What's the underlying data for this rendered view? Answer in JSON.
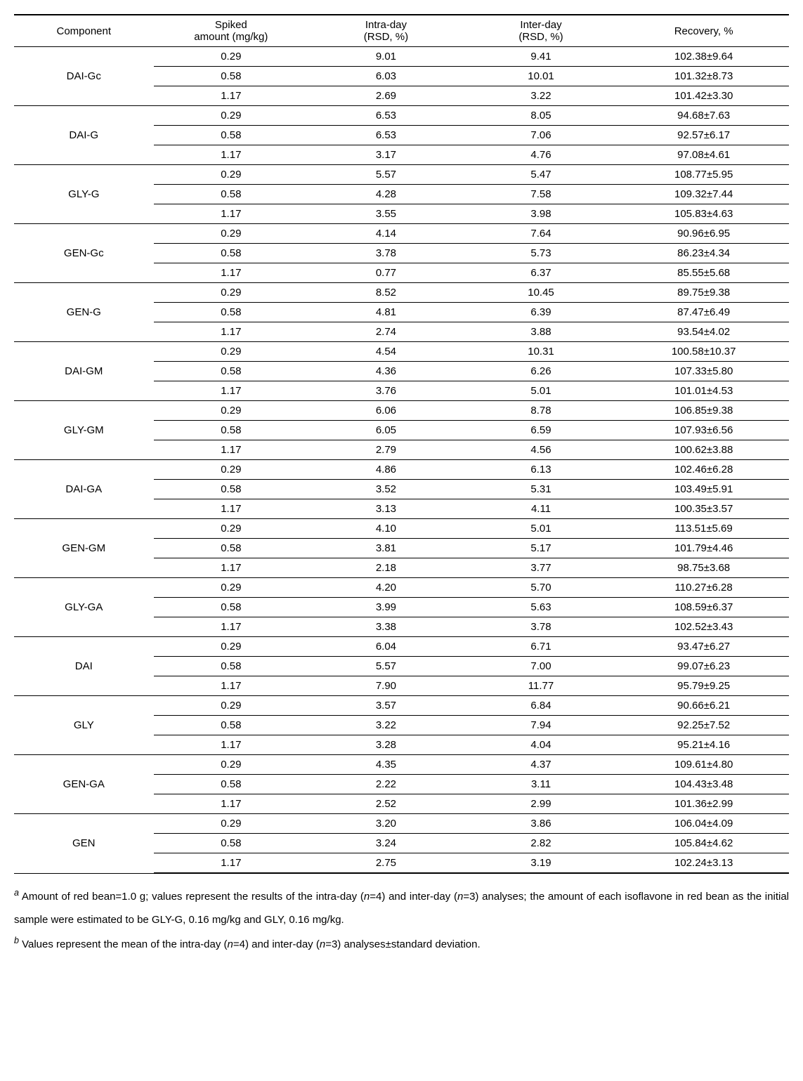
{
  "type": "table",
  "background_color": "#ffffff",
  "text_color": "#000000",
  "border_color": "#000000",
  "fontsize": 15,
  "footnote_fontsize": 15,
  "columns": [
    {
      "key": "component",
      "label": "Component"
    },
    {
      "key": "spiked",
      "label_line1": "Spiked",
      "label_line2": "amount (mg/kg)"
    },
    {
      "key": "intra",
      "label_line1": "Intra-day",
      "label_line2": "(RSD, %)"
    },
    {
      "key": "inter",
      "label_line1": "Inter-day",
      "label_line2": "(RSD, %)"
    },
    {
      "key": "recovery",
      "label": "Recovery, %"
    }
  ],
  "groups": [
    {
      "component": "DAI-Gc",
      "rows": [
        {
          "spiked": "0.29",
          "intra": "9.01",
          "inter": "9.41",
          "recovery": "102.38±9.64"
        },
        {
          "spiked": "0.58",
          "intra": "6.03",
          "inter": "10.01",
          "recovery": "101.32±8.73"
        },
        {
          "spiked": "1.17",
          "intra": "2.69",
          "inter": "3.22",
          "recovery": "101.42±3.30"
        }
      ]
    },
    {
      "component": "DAI-G",
      "rows": [
        {
          "spiked": "0.29",
          "intra": "6.53",
          "inter": "8.05",
          "recovery": "94.68±7.63"
        },
        {
          "spiked": "0.58",
          "intra": "6.53",
          "inter": "7.06",
          "recovery": "92.57±6.17"
        },
        {
          "spiked": "1.17",
          "intra": "3.17",
          "inter": "4.76",
          "recovery": "97.08±4.61"
        }
      ]
    },
    {
      "component": "GLY-G",
      "rows": [
        {
          "spiked": "0.29",
          "intra": "5.57",
          "inter": "5.47",
          "recovery": "108.77±5.95"
        },
        {
          "spiked": "0.58",
          "intra": "4.28",
          "inter": "7.58",
          "recovery": "109.32±7.44"
        },
        {
          "spiked": "1.17",
          "intra": "3.55",
          "inter": "3.98",
          "recovery": "105.83±4.63"
        }
      ]
    },
    {
      "component": "GEN-Gc",
      "rows": [
        {
          "spiked": "0.29",
          "intra": "4.14",
          "inter": "7.64",
          "recovery": "90.96±6.95"
        },
        {
          "spiked": "0.58",
          "intra": "3.78",
          "inter": "5.73",
          "recovery": "86.23±4.34"
        },
        {
          "spiked": "1.17",
          "intra": "0.77",
          "inter": "6.37",
          "recovery": "85.55±5.68"
        }
      ]
    },
    {
      "component": "GEN-G",
      "rows": [
        {
          "spiked": "0.29",
          "intra": "8.52",
          "inter": "10.45",
          "recovery": "89.75±9.38"
        },
        {
          "spiked": "0.58",
          "intra": "4.81",
          "inter": "6.39",
          "recovery": "87.47±6.49"
        },
        {
          "spiked": "1.17",
          "intra": "2.74",
          "inter": "3.88",
          "recovery": "93.54±4.02"
        }
      ]
    },
    {
      "component": "DAI-GM",
      "rows": [
        {
          "spiked": "0.29",
          "intra": "4.54",
          "inter": "10.31",
          "recovery": "100.58±10.37"
        },
        {
          "spiked": "0.58",
          "intra": "4.36",
          "inter": "6.26",
          "recovery": "107.33±5.80"
        },
        {
          "spiked": "1.17",
          "intra": "3.76",
          "inter": "5.01",
          "recovery": "101.01±4.53"
        }
      ]
    },
    {
      "component": "GLY-GM",
      "rows": [
        {
          "spiked": "0.29",
          "intra": "6.06",
          "inter": "8.78",
          "recovery": "106.85±9.38"
        },
        {
          "spiked": "0.58",
          "intra": "6.05",
          "inter": "6.59",
          "recovery": "107.93±6.56"
        },
        {
          "spiked": "1.17",
          "intra": "2.79",
          "inter": "4.56",
          "recovery": "100.62±3.88"
        }
      ]
    },
    {
      "component": "DAI-GA",
      "rows": [
        {
          "spiked": "0.29",
          "intra": "4.86",
          "inter": "6.13",
          "recovery": "102.46±6.28"
        },
        {
          "spiked": "0.58",
          "intra": "3.52",
          "inter": "5.31",
          "recovery": "103.49±5.91"
        },
        {
          "spiked": "1.17",
          "intra": "3.13",
          "inter": "4.11",
          "recovery": "100.35±3.57"
        }
      ]
    },
    {
      "component": "GEN-GM",
      "rows": [
        {
          "spiked": "0.29",
          "intra": "4.10",
          "inter": "5.01",
          "recovery": "113.51±5.69"
        },
        {
          "spiked": "0.58",
          "intra": "3.81",
          "inter": "5.17",
          "recovery": "101.79±4.46"
        },
        {
          "spiked": "1.17",
          "intra": "2.18",
          "inter": "3.77",
          "recovery": "98.75±3.68"
        }
      ]
    },
    {
      "component": "GLY-GA",
      "rows": [
        {
          "spiked": "0.29",
          "intra": "4.20",
          "inter": "5.70",
          "recovery": "110.27±6.28"
        },
        {
          "spiked": "0.58",
          "intra": "3.99",
          "inter": "5.63",
          "recovery": "108.59±6.37"
        },
        {
          "spiked": "1.17",
          "intra": "3.38",
          "inter": "3.78",
          "recovery": "102.52±3.43"
        }
      ]
    },
    {
      "component": "DAI",
      "rows": [
        {
          "spiked": "0.29",
          "intra": "6.04",
          "inter": "6.71",
          "recovery": "93.47±6.27"
        },
        {
          "spiked": "0.58",
          "intra": "5.57",
          "inter": "7.00",
          "recovery": "99.07±6.23"
        },
        {
          "spiked": "1.17",
          "intra": "7.90",
          "inter": "11.77",
          "recovery": "95.79±9.25"
        }
      ]
    },
    {
      "component": "GLY",
      "rows": [
        {
          "spiked": "0.29",
          "intra": "3.57",
          "inter": "6.84",
          "recovery": "90.66±6.21"
        },
        {
          "spiked": "0.58",
          "intra": "3.22",
          "inter": "7.94",
          "recovery": "92.25±7.52"
        },
        {
          "spiked": "1.17",
          "intra": "3.28",
          "inter": "4.04",
          "recovery": "95.21±4.16"
        }
      ]
    },
    {
      "component": "GEN-GA",
      "rows": [
        {
          "spiked": "0.29",
          "intra": "4.35",
          "inter": "4.37",
          "recovery": "109.61±4.80"
        },
        {
          "spiked": "0.58",
          "intra": "2.22",
          "inter": "3.11",
          "recovery": "104.43±3.48"
        },
        {
          "spiked": "1.17",
          "intra": "2.52",
          "inter": "2.99",
          "recovery": "101.36±2.99"
        }
      ]
    },
    {
      "component": "GEN",
      "rows": [
        {
          "spiked": "0.29",
          "intra": "3.20",
          "inter": "3.86",
          "recovery": "106.04±4.09"
        },
        {
          "spiked": "0.58",
          "intra": "3.24",
          "inter": "2.82",
          "recovery": "105.84±4.62"
        },
        {
          "spiked": "1.17",
          "intra": "2.75",
          "inter": "3.19",
          "recovery": "102.24±3.13"
        }
      ]
    }
  ],
  "footnotes": {
    "a_marker": "a",
    "a_part1": " Amount of red bean=1.0 g; values represent the results of the intra-day (",
    "a_n1": "n",
    "a_part2": "=4) and inter-day (",
    "a_n2": "n",
    "a_part3": "=3) analyses; the amount of each isoflavone in red bean as the initial sample were estimated to be GLY-G, 0.16 mg/kg and GLY, 0.16 mg/kg.",
    "b_marker": "b",
    "b_part1": " Values represent the mean of the intra-day (",
    "b_n1": "n",
    "b_part2": "=4) and inter-day (",
    "b_n2": "n",
    "b_part3": "=3) analyses±standard deviation."
  }
}
